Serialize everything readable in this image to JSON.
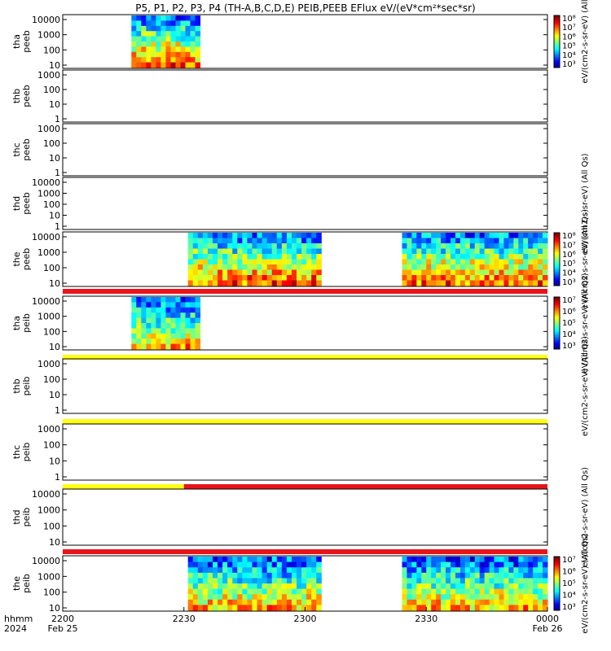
{
  "title": "P5, P1, P2, P3, P4 (TH-A,B,C,D,E) PEIB,PEEB EFlux eV/(eV*cm²*sec*sr)",
  "colors": {
    "frame": "#000000",
    "status_red": "#e8141a",
    "status_yellow": "#ffff14",
    "background": "#ffffff"
  },
  "chart_data": {
    "type": "heatmap",
    "x_ticks": [
      "2200",
      "2230",
      "2300",
      "2330",
      "0000"
    ],
    "x_range_hhmm": [
      "2200",
      "0000"
    ],
    "x_date_labels": {
      "left_axis": "hhmm",
      "left_year": "2024",
      "start": "Feb 25",
      "end": "Feb 26"
    },
    "panels": [
      {
        "probe": "tha",
        "species": "peeb",
        "ylabel_1": "tha",
        "ylabel_2": "peeb",
        "y_ticks": [
          "10000",
          "1000",
          "100",
          "10"
        ],
        "log_y": true,
        "data_intervals": [
          [
            "2217",
            "2234"
          ]
        ],
        "colorbar": {
          "ticks": [
            "10⁸",
            "10⁷",
            "10⁶",
            "10⁵",
            "10⁴",
            "10³"
          ],
          "label": "eV/(cm2-s-sr-eV) (All"
        }
      },
      {
        "probe": "thb",
        "species": "peeb",
        "ylabel_1": "thb",
        "ylabel_2": "peeb",
        "y_ticks": [
          "1000",
          "100",
          "10",
          "1"
        ],
        "log_y": true,
        "data_intervals": []
      },
      {
        "probe": "thc",
        "species": "peeb",
        "ylabel_1": "thc",
        "ylabel_2": "peeb",
        "y_ticks": [
          "1000",
          "100",
          "10",
          "1"
        ],
        "log_y": true,
        "data_intervals": []
      },
      {
        "probe": "thd",
        "species": "peeb",
        "ylabel_1": "thd",
        "ylabel_2": "peeb",
        "y_ticks": [
          "10000",
          "1000",
          "100",
          "10",
          "1"
        ],
        "log_y": true,
        "data_intervals": [],
        "side_label": "eV/(cm2-s-sr-eV) (All Qs)"
      },
      {
        "probe": "the",
        "species": "peeb",
        "ylabel_1": "the",
        "ylabel_2": "peeb",
        "y_ticks": [
          "10000",
          "1000",
          "100",
          "10"
        ],
        "log_y": true,
        "data_intervals": [
          [
            "2231",
            "2304"
          ],
          [
            "2324",
            "0000"
          ]
        ],
        "colorbar": {
          "ticks": [
            "10⁸",
            "10⁷",
            "10⁶",
            "10⁵",
            "10⁴",
            "10³"
          ],
          "label": "eV/(cm2-s-sr-eV) (All Qs)"
        },
        "status_bar": [
          {
            "from": "2200",
            "to": "0000",
            "color": "red"
          }
        ]
      },
      {
        "probe": "tha",
        "species": "peib",
        "ylabel_1": "tha",
        "ylabel_2": "peib",
        "y_ticks": [
          "10000",
          "1000",
          "100",
          "10"
        ],
        "log_y": true,
        "data_intervals": [
          [
            "2217",
            "2234"
          ]
        ],
        "colorbar": {
          "ticks": [
            "10⁷",
            "10⁶",
            "10⁵",
            "10⁴",
            "10³"
          ],
          "label": "eV/(cm2-s-sr-eV) (All Qs)"
        },
        "status_bar": [
          {
            "from": "2200",
            "to": "0000",
            "color": "yellow"
          }
        ]
      },
      {
        "probe": "thb",
        "species": "peib",
        "ylabel_1": "thb",
        "ylabel_2": "peib",
        "y_ticks": [
          "1000",
          "100",
          "10",
          "1"
        ],
        "log_y": true,
        "data_intervals": [],
        "side_label": "eV/(cm2-s-sr-eV) (All Qs)",
        "status_bar": [
          {
            "from": "2200",
            "to": "0000",
            "color": "yellow"
          }
        ]
      },
      {
        "probe": "thc",
        "species": "peib",
        "ylabel_1": "thc",
        "ylabel_2": "peib",
        "y_ticks": [
          "1000",
          "100",
          "10",
          "1"
        ],
        "log_y": true,
        "data_intervals": [],
        "status_bar": [
          {
            "from": "2200",
            "to": "2230",
            "color": "yellow"
          },
          {
            "from": "2230",
            "to": "0000",
            "color": "red"
          }
        ]
      },
      {
        "probe": "thd",
        "species": "peib",
        "ylabel_1": "thd",
        "ylabel_2": "peib",
        "y_ticks": [
          "10000",
          "1000",
          "100",
          "10"
        ],
        "log_y": true,
        "data_intervals": [],
        "side_label": "eV/(cm2-s-sr-eV) (All Qs)",
        "status_bar": [
          {
            "from": "2200",
            "to": "0000",
            "color": "red"
          }
        ]
      },
      {
        "probe": "the",
        "species": "peib",
        "ylabel_1": "the",
        "ylabel_2": "peib",
        "y_ticks": [
          "10000",
          "1000",
          "100",
          "10"
        ],
        "log_y": true,
        "data_intervals": [
          [
            "2231",
            "2304"
          ],
          [
            "2324",
            "0000"
          ]
        ],
        "colorbar": {
          "ticks": [
            "10⁷",
            "10⁶",
            "10⁵",
            "10⁴",
            "10³"
          ],
          "label": "eV/(cm2-s-sr-eV) (All Qs)"
        }
      }
    ]
  }
}
